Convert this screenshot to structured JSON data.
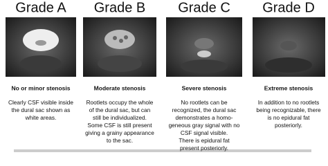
{
  "figure": {
    "panels": [
      {
        "title": "Grade A",
        "label": "No or minor stenosis",
        "description": [
          "Clearly CSF visible inside",
          "the dural sac shown as",
          "white areas."
        ]
      },
      {
        "title": "Grade B",
        "label": "Moderate stenosis",
        "description": [
          "Rootlets occupy the whole",
          "of the dural sac, but can",
          "still be individualized.",
          "Some CSF is still present",
          "giving a grainy appearance",
          "to the sac."
        ]
      },
      {
        "title": "Grade C",
        "label": "Severe stenosis",
        "description": [
          "No rootlets can be",
          "recognized, the dural sac",
          "demonstrates a homo-",
          "geneous gray signal with no",
          "CSF signal visible.",
          "There is epidural fat",
          "present posteriorly."
        ]
      },
      {
        "title": "Grade D",
        "label": "Extreme stenosis",
        "description": [
          "In addition to no rootlets",
          "being recognizable, there",
          "is no epidural fat",
          "posteriorly."
        ]
      }
    ]
  }
}
